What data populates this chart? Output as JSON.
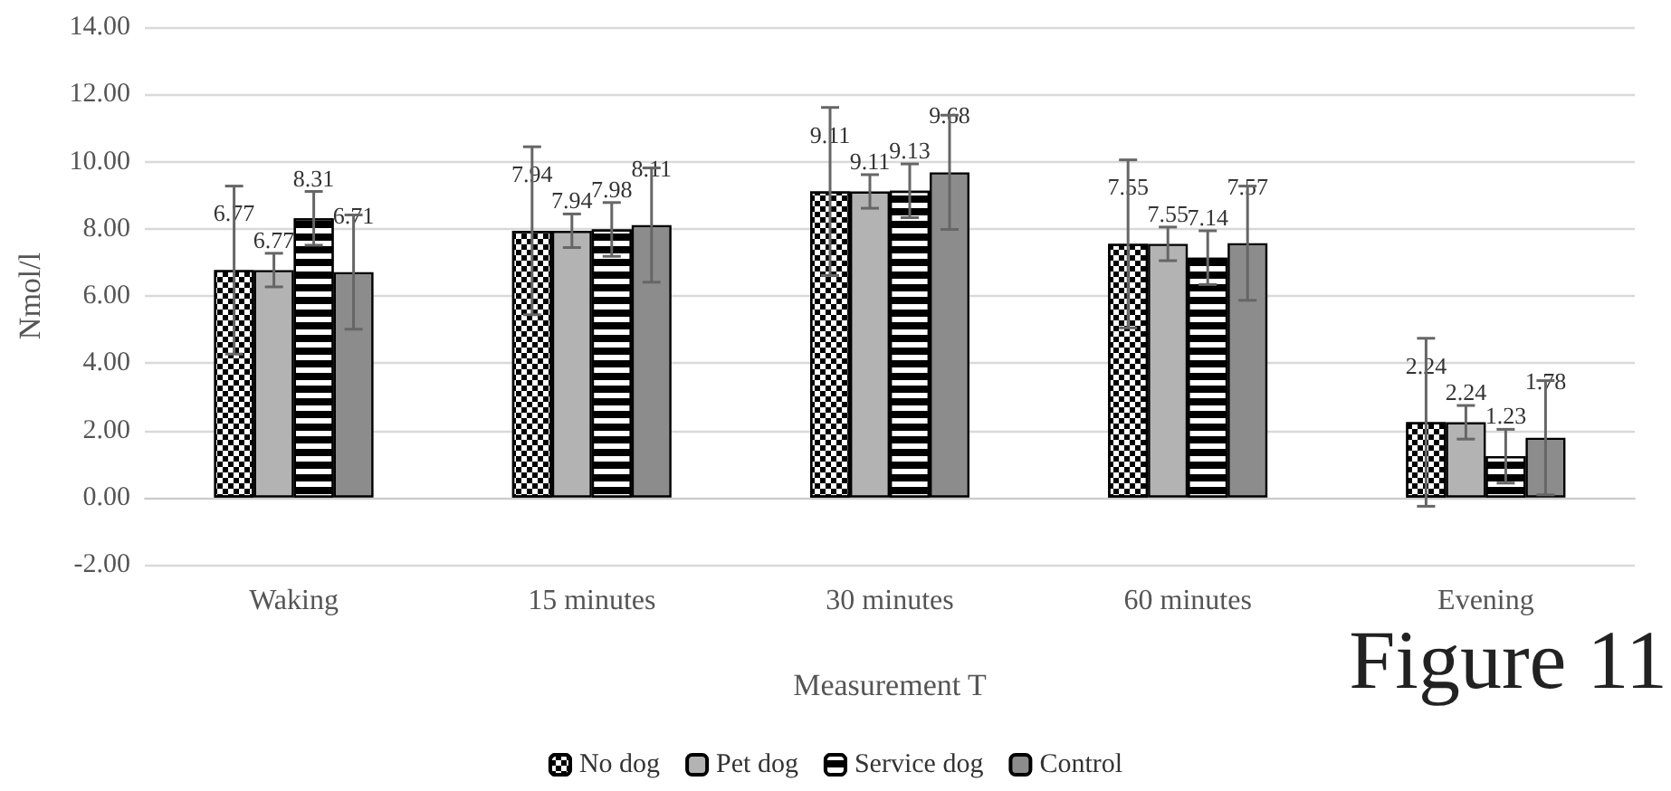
{
  "chart_data": {
    "type": "bar",
    "xlabel": "Measurement T",
    "ylabel": "Nmol/l",
    "categories": [
      "Waking",
      "15 minutes",
      "30 minutes",
      "60 minutes",
      "Evening"
    ],
    "series": [
      {
        "name": "No dog",
        "color": "#ffffff",
        "values": [
          6.77,
          7.94,
          9.11,
          7.55,
          2.24
        ],
        "errors": [
          2.5,
          2.5,
          2.5,
          2.5,
          2.5
        ]
      },
      {
        "name": "Pet dog",
        "color": "#b3b3b3",
        "values": [
          6.77,
          7.94,
          9.11,
          7.55,
          2.24
        ],
        "errors": [
          0.5,
          0.5,
          0.5,
          0.5,
          0.5
        ]
      },
      {
        "name": "Service dog",
        "color": "#000000",
        "values": [
          8.31,
          7.98,
          9.13,
          7.14,
          1.23
        ],
        "errors": [
          0.8,
          0.8,
          0.8,
          0.8,
          0.8
        ]
      },
      {
        "name": "Control",
        "color": "#8c8c8c",
        "values": [
          6.71,
          8.11,
          9.68,
          7.57,
          1.78
        ],
        "errors": [
          1.7,
          1.7,
          1.7,
          1.7,
          1.7
        ]
      }
    ],
    "ylim": [
      -2,
      14
    ],
    "yticks": [
      {
        "value": -2,
        "label": "-2.00"
      },
      {
        "value": 0,
        "label": "0.00"
      },
      {
        "value": 2,
        "label": "2.00"
      },
      {
        "value": 4,
        "label": "4.00"
      },
      {
        "value": 6,
        "label": "6.00"
      },
      {
        "value": 8,
        "label": "8.00"
      },
      {
        "value": 10,
        "label": "10.00"
      },
      {
        "value": 12,
        "label": "12.00"
      },
      {
        "value": 14,
        "label": "14.00"
      }
    ],
    "grid": "y",
    "legend": "bottom",
    "data_labels": true,
    "annotations": [
      "Figure 11"
    ]
  }
}
